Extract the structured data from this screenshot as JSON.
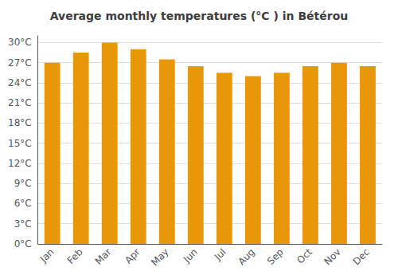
{
  "chart_data": {
    "type": "bar",
    "title": "Average monthly temperatures (°C ) in Bétérou",
    "categories": [
      "Jan",
      "Feb",
      "Mar",
      "Apr",
      "May",
      "Jun",
      "Jul",
      "Aug",
      "Sep",
      "Oct",
      "Nov",
      "Dec"
    ],
    "values": [
      27.0,
      28.5,
      30.0,
      29.0,
      27.5,
      26.5,
      25.5,
      25.0,
      25.5,
      26.5,
      27.0,
      26.5
    ],
    "color": "#E8960A",
    "ylim": [
      0,
      31
    ],
    "yticks": [
      {
        "value": 0,
        "label": "0°C"
      },
      {
        "value": 3,
        "label": "3°C"
      },
      {
        "value": 6,
        "label": "6°C"
      },
      {
        "value": 9,
        "label": "9°C"
      },
      {
        "value": 12,
        "label": "12°C"
      },
      {
        "value": 15,
        "label": "15°C"
      },
      {
        "value": 18,
        "label": "18°C"
      },
      {
        "value": 21,
        "label": "21°C"
      },
      {
        "value": 24,
        "label": "24°C"
      },
      {
        "value": 27,
        "label": "27°C"
      },
      {
        "value": 30,
        "label": "30°C"
      }
    ],
    "grid": true
  }
}
